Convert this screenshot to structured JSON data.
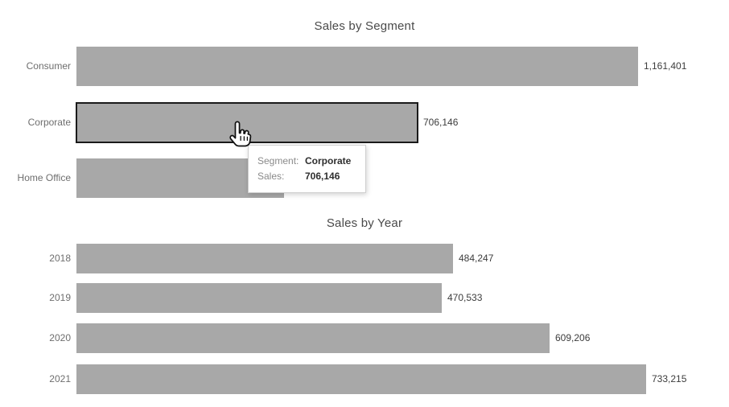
{
  "page": {
    "background": "#ffffff",
    "bar_color": "#a8a8a8",
    "highlight_border_color": "#1a1a1a",
    "category_label_color": "#6e6e6e",
    "value_label_color": "#3c3c3c",
    "title_color": "#4a4a4a"
  },
  "chart_data": [
    {
      "type": "bar",
      "orientation": "horizontal",
      "title": "Sales by Segment",
      "categories": [
        "Consumer",
        "Corporate",
        "Home Office"
      ],
      "values": [
        1161401,
        706146,
        null
      ],
      "value_labels": [
        "1,161,401",
        "706,146",
        ""
      ],
      "home_office_value_label_hidden_by_tooltip": true,
      "home_office_bar_fraction_of_max": 0.37,
      "highlighted_index": 1,
      "xlim": [
        0,
        1200000
      ],
      "grid": false,
      "legend": "none"
    },
    {
      "type": "bar",
      "orientation": "horizontal",
      "title": "Sales by Year",
      "categories": [
        "2018",
        "2019",
        "2020",
        "2021"
      ],
      "values": [
        484247,
        470533,
        609206,
        733215
      ],
      "value_labels": [
        "484,247",
        "470,533",
        "609,206",
        "733,215"
      ],
      "highlighted_index": -1,
      "xlim": [
        0,
        760000
      ],
      "grid": false,
      "legend": "none"
    }
  ],
  "tooltip": {
    "rows": [
      {
        "label": "Segment:",
        "value": "Corporate"
      },
      {
        "label": "Sales:",
        "value": "706,146"
      }
    ]
  }
}
